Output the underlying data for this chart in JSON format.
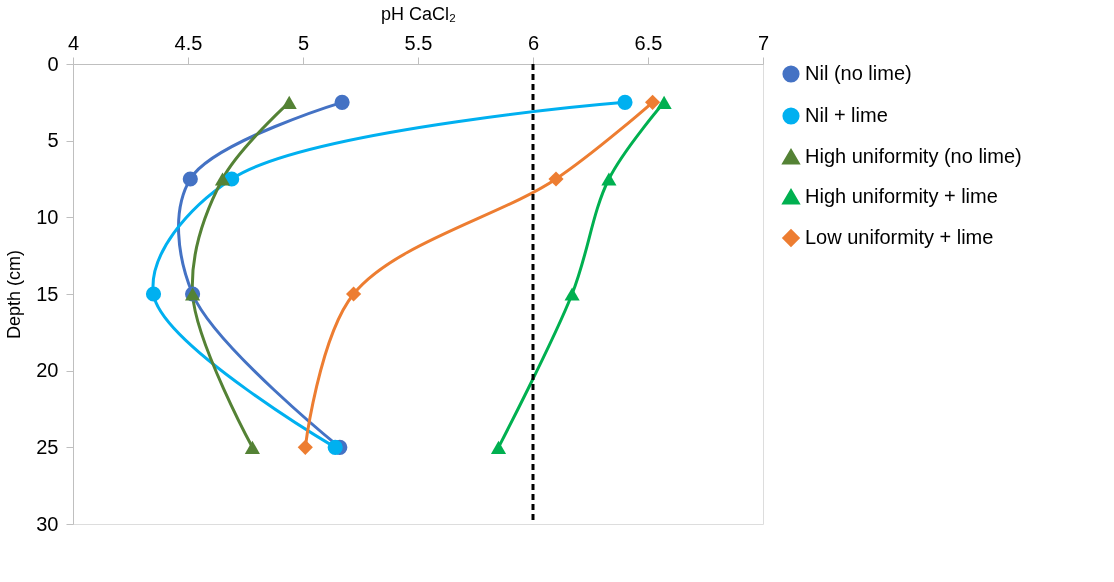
{
  "chart_data": {
    "type": "line",
    "xlabel": "pH CaCl₂",
    "ylabel": "Depth (cm)",
    "xlim": [
      4,
      7
    ],
    "xticks": [
      4,
      4.5,
      5,
      5.5,
      6,
      6.5,
      7
    ],
    "ylim": [
      30,
      0
    ],
    "yticks": [
      0,
      5,
      10,
      15,
      20,
      25,
      30
    ],
    "grid": false,
    "legend": "right",
    "line_style": "solid",
    "series": [
      {
        "name": "Nil (no lime)",
        "color": "#4472c4",
        "marker": "circle",
        "x": [
          5.17,
          4.51,
          4.52,
          5.16
        ],
        "values": [
          2.5,
          7.5,
          15,
          25
        ]
      },
      {
        "name": "Nil + lime",
        "color": "#00b0f0",
        "marker": "circle",
        "x": [
          6.4,
          4.69,
          4.35,
          5.14
        ],
        "values": [
          2.5,
          7.5,
          15,
          25
        ]
      },
      {
        "name": "High uniformity (no lime)",
        "color": "#548235",
        "marker": "triangle",
        "x": [
          4.94,
          4.65,
          4.52,
          4.78
        ],
        "values": [
          2.5,
          7.5,
          15,
          25
        ]
      },
      {
        "name": "High uniformity + lime",
        "color": "#00b050",
        "marker": "triangle",
        "x": [
          6.57,
          6.33,
          6.17,
          5.85
        ],
        "values": [
          2.5,
          7.5,
          15,
          25
        ]
      },
      {
        "name": "Low uniformity + lime",
        "color": "#ed7d31",
        "marker": "diamond",
        "x": [
          6.52,
          6.1,
          5.22,
          5.01
        ],
        "values": [
          2.5,
          7.5,
          15,
          25
        ]
      }
    ],
    "ref_lines": [
      {
        "axis": "x",
        "value": 6,
        "color": "#000000",
        "line_style": "dashed"
      }
    ]
  }
}
